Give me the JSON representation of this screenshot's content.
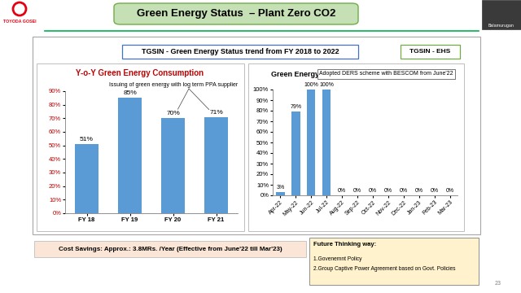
{
  "slide": {
    "logo": "TOYODA GOSEI",
    "title": "Green Energy Status  – Plant Zero CO2",
    "subtitle": "TGSIN - Green Energy Status trend from FY 2018 to 2022",
    "tag": "TGSIN - EHS",
    "cost_savings": "Cost Savings: Approx.: 3.8MRs. /Year (Effective from June'22 till Mar'23)",
    "future_thinking": {
      "heading": "Future Thinking way:",
      "items": [
        "1.Govenemnt Policy",
        "2.Group Captive Power Agreement based on Govt. Policies"
      ]
    },
    "page": 23,
    "participant": "Balamurugan"
  },
  "chart_data": [
    {
      "type": "bar",
      "title": "Y-o-Y Green Energy Consumption",
      "categories": [
        "FY 18",
        "FY 19",
        "FY 20",
        "FY 21"
      ],
      "values": [
        51,
        85,
        70,
        71
      ],
      "value_labels": [
        "51%",
        "85%",
        "70%",
        "71%"
      ],
      "data_labels": true,
      "color": "#5b9bd5",
      "ylim": [
        0,
        90
      ],
      "yticks": [
        {
          "value": 0,
          "label": "0%"
        },
        {
          "value": 10,
          "label": "10%"
        },
        {
          "value": 20,
          "label": "20%"
        },
        {
          "value": 30,
          "label": "30%"
        },
        {
          "value": 40,
          "label": "40%"
        },
        {
          "value": 50,
          "label": "50%"
        },
        {
          "value": 60,
          "label": "60%"
        },
        {
          "value": 70,
          "label": "70%"
        },
        {
          "value": 80,
          "label": "80%"
        },
        {
          "value": 90,
          "label": "90%"
        }
      ],
      "grid": false,
      "annotation": "Issuing of green energy with log term PPA supplier"
    },
    {
      "type": "bar",
      "title": "Green Energy",
      "categories": [
        "Apr-22",
        "May-22",
        "Jun-22",
        "Jul-22",
        "Aug-22",
        "Sep-22",
        "Oct-22",
        "Nov-22",
        "Dec-22",
        "Jan-23",
        "Feb-23",
        "Mar-23"
      ],
      "values": [
        3,
        79,
        100,
        100,
        0,
        0,
        0,
        0,
        0,
        0,
        0,
        0
      ],
      "value_labels": [
        "3%",
        "79%",
        "100%",
        "100%",
        "0%",
        "0%",
        "0%",
        "0%",
        "0%",
        "0%",
        "0%",
        "0%"
      ],
      "data_labels": true,
      "color": "#5b9bd5",
      "ylim": [
        0,
        100
      ],
      "yticks": [
        {
          "value": 0,
          "label": "0%"
        },
        {
          "value": 10,
          "label": "10%"
        },
        {
          "value": 20,
          "label": "20%"
        },
        {
          "value": 30,
          "label": "30%"
        },
        {
          "value": 40,
          "label": "40%"
        },
        {
          "value": 50,
          "label": "50%"
        },
        {
          "value": 60,
          "label": "60%"
        },
        {
          "value": 70,
          "label": "70%"
        },
        {
          "value": 80,
          "label": "80%"
        },
        {
          "value": 90,
          "label": "90%"
        },
        {
          "value": 100,
          "label": "100%"
        }
      ],
      "grid": false,
      "annotation": "Adopted DERS scheme with BESCOM from June'22"
    }
  ]
}
